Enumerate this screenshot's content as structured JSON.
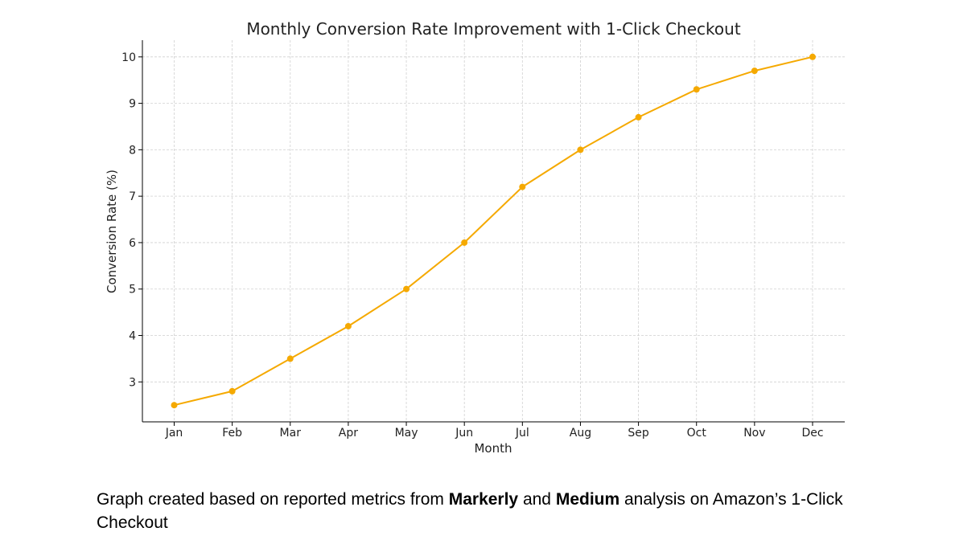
{
  "chart_data": {
    "type": "line",
    "title": "Monthly Conversion Rate Improvement with 1-Click Checkout",
    "xlabel": "Month",
    "ylabel": "Conversion Rate (%)",
    "categories": [
      "Jan",
      "Feb",
      "Mar",
      "Apr",
      "May",
      "Jun",
      "Jul",
      "Aug",
      "Sep",
      "Oct",
      "Nov",
      "Dec"
    ],
    "values": [
      2.5,
      2.8,
      3.5,
      4.2,
      5.0,
      6.0,
      7.2,
      8.0,
      8.7,
      9.3,
      9.7,
      10.0
    ],
    "yticks": [
      3,
      4,
      5,
      6,
      7,
      8,
      9,
      10
    ],
    "ylim": [
      2.14,
      10.36
    ],
    "grid": true,
    "color": "#f5a900"
  },
  "caption": {
    "prefix": "Graph created based on reported metrics from ",
    "source1": "Markerly",
    "middle": " and ",
    "source2": "Medium",
    "suffix": " analysis on Amazon’s 1-Click Checkout"
  }
}
